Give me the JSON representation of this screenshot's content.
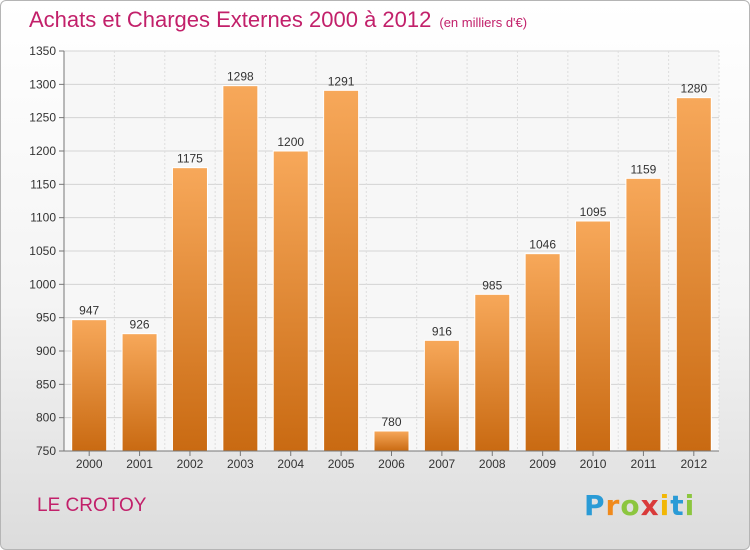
{
  "chart_data": {
    "type": "bar",
    "title": "Achats et Charges Externes 2000 à 2012",
    "subtitle": "(en milliers d'€)",
    "categories": [
      "2000",
      "2001",
      "2002",
      "2003",
      "2004",
      "2005",
      "2006",
      "2007",
      "2008",
      "2009",
      "2010",
      "2011",
      "2012"
    ],
    "values": [
      947,
      926,
      1175,
      1298,
      1200,
      1291,
      780,
      916,
      985,
      1046,
      1095,
      1159,
      1280
    ],
    "ylim": [
      750,
      1350
    ],
    "yticks": [
      750,
      800,
      850,
      900,
      950,
      1000,
      1050,
      1100,
      1150,
      1200,
      1250,
      1300,
      1350
    ],
    "grid": true,
    "legend": "none",
    "bar_color": "#ee8a2e"
  },
  "location": "LE CROTOY",
  "logo": {
    "letters": [
      "P",
      "r",
      "o",
      "x",
      "i",
      "t",
      "i"
    ],
    "colors": [
      "#2a9bd6",
      "#f08a1c",
      "#8cc63f",
      "#d93a3a",
      "#f2b705",
      "#2a9bd6",
      "#8cc63f"
    ]
  },
  "colors": {
    "accent": "#c2206a"
  }
}
